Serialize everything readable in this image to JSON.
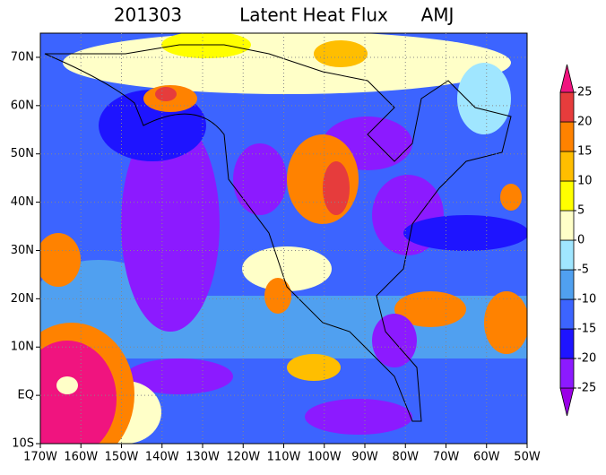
{
  "title": [
    "201303",
    "Latent Heat Flux",
    "AMJ"
  ],
  "map": {
    "xlim": [
      -170,
      -50
    ],
    "ylim": [
      -10,
      75
    ],
    "xticks": [
      {
        "value": -170,
        "label": "170W"
      },
      {
        "value": -160,
        "label": "160W"
      },
      {
        "value": -150,
        "label": "150W"
      },
      {
        "value": -140,
        "label": "140W"
      },
      {
        "value": -130,
        "label": "130W"
      },
      {
        "value": -120,
        "label": "120W"
      },
      {
        "value": -110,
        "label": "110W"
      },
      {
        "value": -100,
        "label": "100W"
      },
      {
        "value": -90,
        "label": "90W"
      },
      {
        "value": -80,
        "label": "80W"
      },
      {
        "value": -70,
        "label": "70W"
      },
      {
        "value": -60,
        "label": "60W"
      },
      {
        "value": -50,
        "label": "50W"
      }
    ],
    "yticks": [
      {
        "value": -10,
        "label": "10S"
      },
      {
        "value": 0,
        "label": "EQ"
      },
      {
        "value": 10,
        "label": "10N"
      },
      {
        "value": 20,
        "label": "20N"
      },
      {
        "value": 30,
        "label": "30N"
      },
      {
        "value": 40,
        "label": "40N"
      },
      {
        "value": 50,
        "label": "50N"
      },
      {
        "value": 60,
        "label": "60N"
      },
      {
        "value": 70,
        "label": "70N"
      }
    ],
    "grid": true
  },
  "colorbar": {
    "levels": [
      -25,
      -20,
      -15,
      -10,
      -5,
      0,
      5,
      10,
      15,
      20,
      25
    ],
    "colors": [
      "#9a00e6",
      "#8c1aff",
      "#1e14ff",
      "#3c64ff",
      "#50a0f0",
      "#a0e6ff",
      "#ffffc8",
      "#ffff00",
      "#ffbe00",
      "#ff8200",
      "#e63c3c",
      "#f0147f"
    ]
  }
}
